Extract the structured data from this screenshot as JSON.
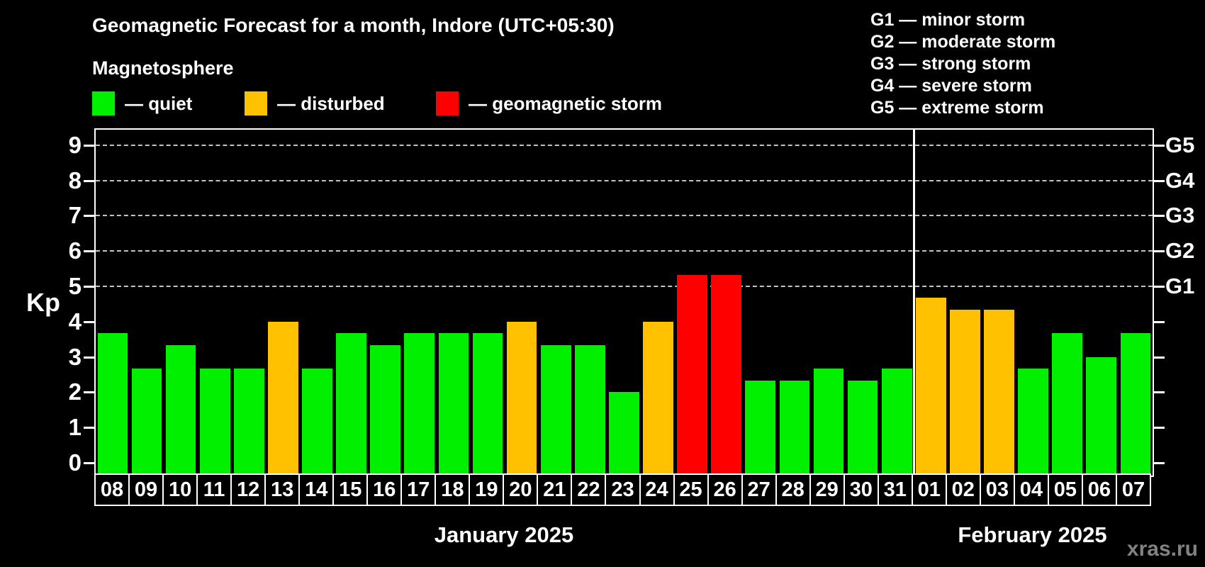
{
  "header": {
    "title": "Geomagnetic Forecast for a month, Indore (UTC+05:30)",
    "subtitle": "Magnetosphere"
  },
  "legend": {
    "items": [
      {
        "name": "quiet",
        "label": "— quiet",
        "color": "#00f000"
      },
      {
        "name": "disturbed",
        "label": "— disturbed",
        "color": "#ffc100"
      },
      {
        "name": "storm",
        "label": "— geomagnetic storm",
        "color": "#ff0000"
      }
    ]
  },
  "storm_legend": {
    "items": [
      "G1 — minor storm",
      "G2 — moderate storm",
      "G3 — strong storm",
      "G4 — severe storm",
      "G5 — extreme storm"
    ]
  },
  "colors": {
    "quiet": "#00f000",
    "disturbed": "#ffc100",
    "storm": "#ff0000",
    "grid": "#c3c3c3",
    "axis": "#ffffff",
    "watermark": "#828282"
  },
  "watermark": "xras.ru",
  "chart_data": {
    "type": "bar",
    "title": "Geomagnetic Forecast for a month, Indore (UTC+05:30)",
    "ylabel": "Kp",
    "ylim": [
      -0.36,
      9.45
    ],
    "yticks": [
      0,
      1,
      2,
      3,
      4,
      5,
      6,
      7,
      8,
      9
    ],
    "gridlines_at": [
      5,
      6,
      7,
      8,
      9
    ],
    "grid": "dashed, horizontal, only at Kp 5-9",
    "legend_position": "top-left",
    "right_axis": [
      {
        "kp": 5,
        "label": "G1"
      },
      {
        "kp": 6,
        "label": "G2"
      },
      {
        "kp": 7,
        "label": "G3"
      },
      {
        "kp": 8,
        "label": "G4"
      },
      {
        "kp": 9,
        "label": "G5"
      }
    ],
    "sections": [
      {
        "label": "January 2025",
        "days": [
          {
            "date": "08",
            "kp": 3.67,
            "status": "quiet"
          },
          {
            "date": "09",
            "kp": 2.67,
            "status": "quiet"
          },
          {
            "date": "10",
            "kp": 3.33,
            "status": "quiet"
          },
          {
            "date": "11",
            "kp": 2.67,
            "status": "quiet"
          },
          {
            "date": "12",
            "kp": 2.67,
            "status": "quiet"
          },
          {
            "date": "13",
            "kp": 4.0,
            "status": "disturbed"
          },
          {
            "date": "14",
            "kp": 2.67,
            "status": "quiet"
          },
          {
            "date": "15",
            "kp": 3.67,
            "status": "quiet"
          },
          {
            "date": "16",
            "kp": 3.33,
            "status": "quiet"
          },
          {
            "date": "17",
            "kp": 3.67,
            "status": "quiet"
          },
          {
            "date": "18",
            "kp": 3.67,
            "status": "quiet"
          },
          {
            "date": "19",
            "kp": 3.67,
            "status": "quiet"
          },
          {
            "date": "20",
            "kp": 4.0,
            "status": "disturbed"
          },
          {
            "date": "21",
            "kp": 3.33,
            "status": "quiet"
          },
          {
            "date": "22",
            "kp": 3.33,
            "status": "quiet"
          },
          {
            "date": "23",
            "kp": 2.0,
            "status": "quiet"
          },
          {
            "date": "24",
            "kp": 4.0,
            "status": "disturbed"
          },
          {
            "date": "25",
            "kp": 5.33,
            "status": "storm"
          },
          {
            "date": "26",
            "kp": 5.33,
            "status": "storm"
          },
          {
            "date": "27",
            "kp": 2.33,
            "status": "quiet"
          },
          {
            "date": "28",
            "kp": 2.33,
            "status": "quiet"
          },
          {
            "date": "29",
            "kp": 2.67,
            "status": "quiet"
          },
          {
            "date": "30",
            "kp": 2.33,
            "status": "quiet"
          },
          {
            "date": "31",
            "kp": 2.67,
            "status": "quiet"
          }
        ]
      },
      {
        "label": "February 2025",
        "days": [
          {
            "date": "01",
            "kp": 4.67,
            "status": "disturbed"
          },
          {
            "date": "02",
            "kp": 4.33,
            "status": "disturbed"
          },
          {
            "date": "03",
            "kp": 4.33,
            "status": "disturbed"
          },
          {
            "date": "04",
            "kp": 2.67,
            "status": "quiet"
          },
          {
            "date": "05",
            "kp": 3.67,
            "status": "quiet"
          },
          {
            "date": "06",
            "kp": 3.0,
            "status": "quiet"
          },
          {
            "date": "07",
            "kp": 3.67,
            "status": "quiet"
          }
        ]
      }
    ]
  }
}
